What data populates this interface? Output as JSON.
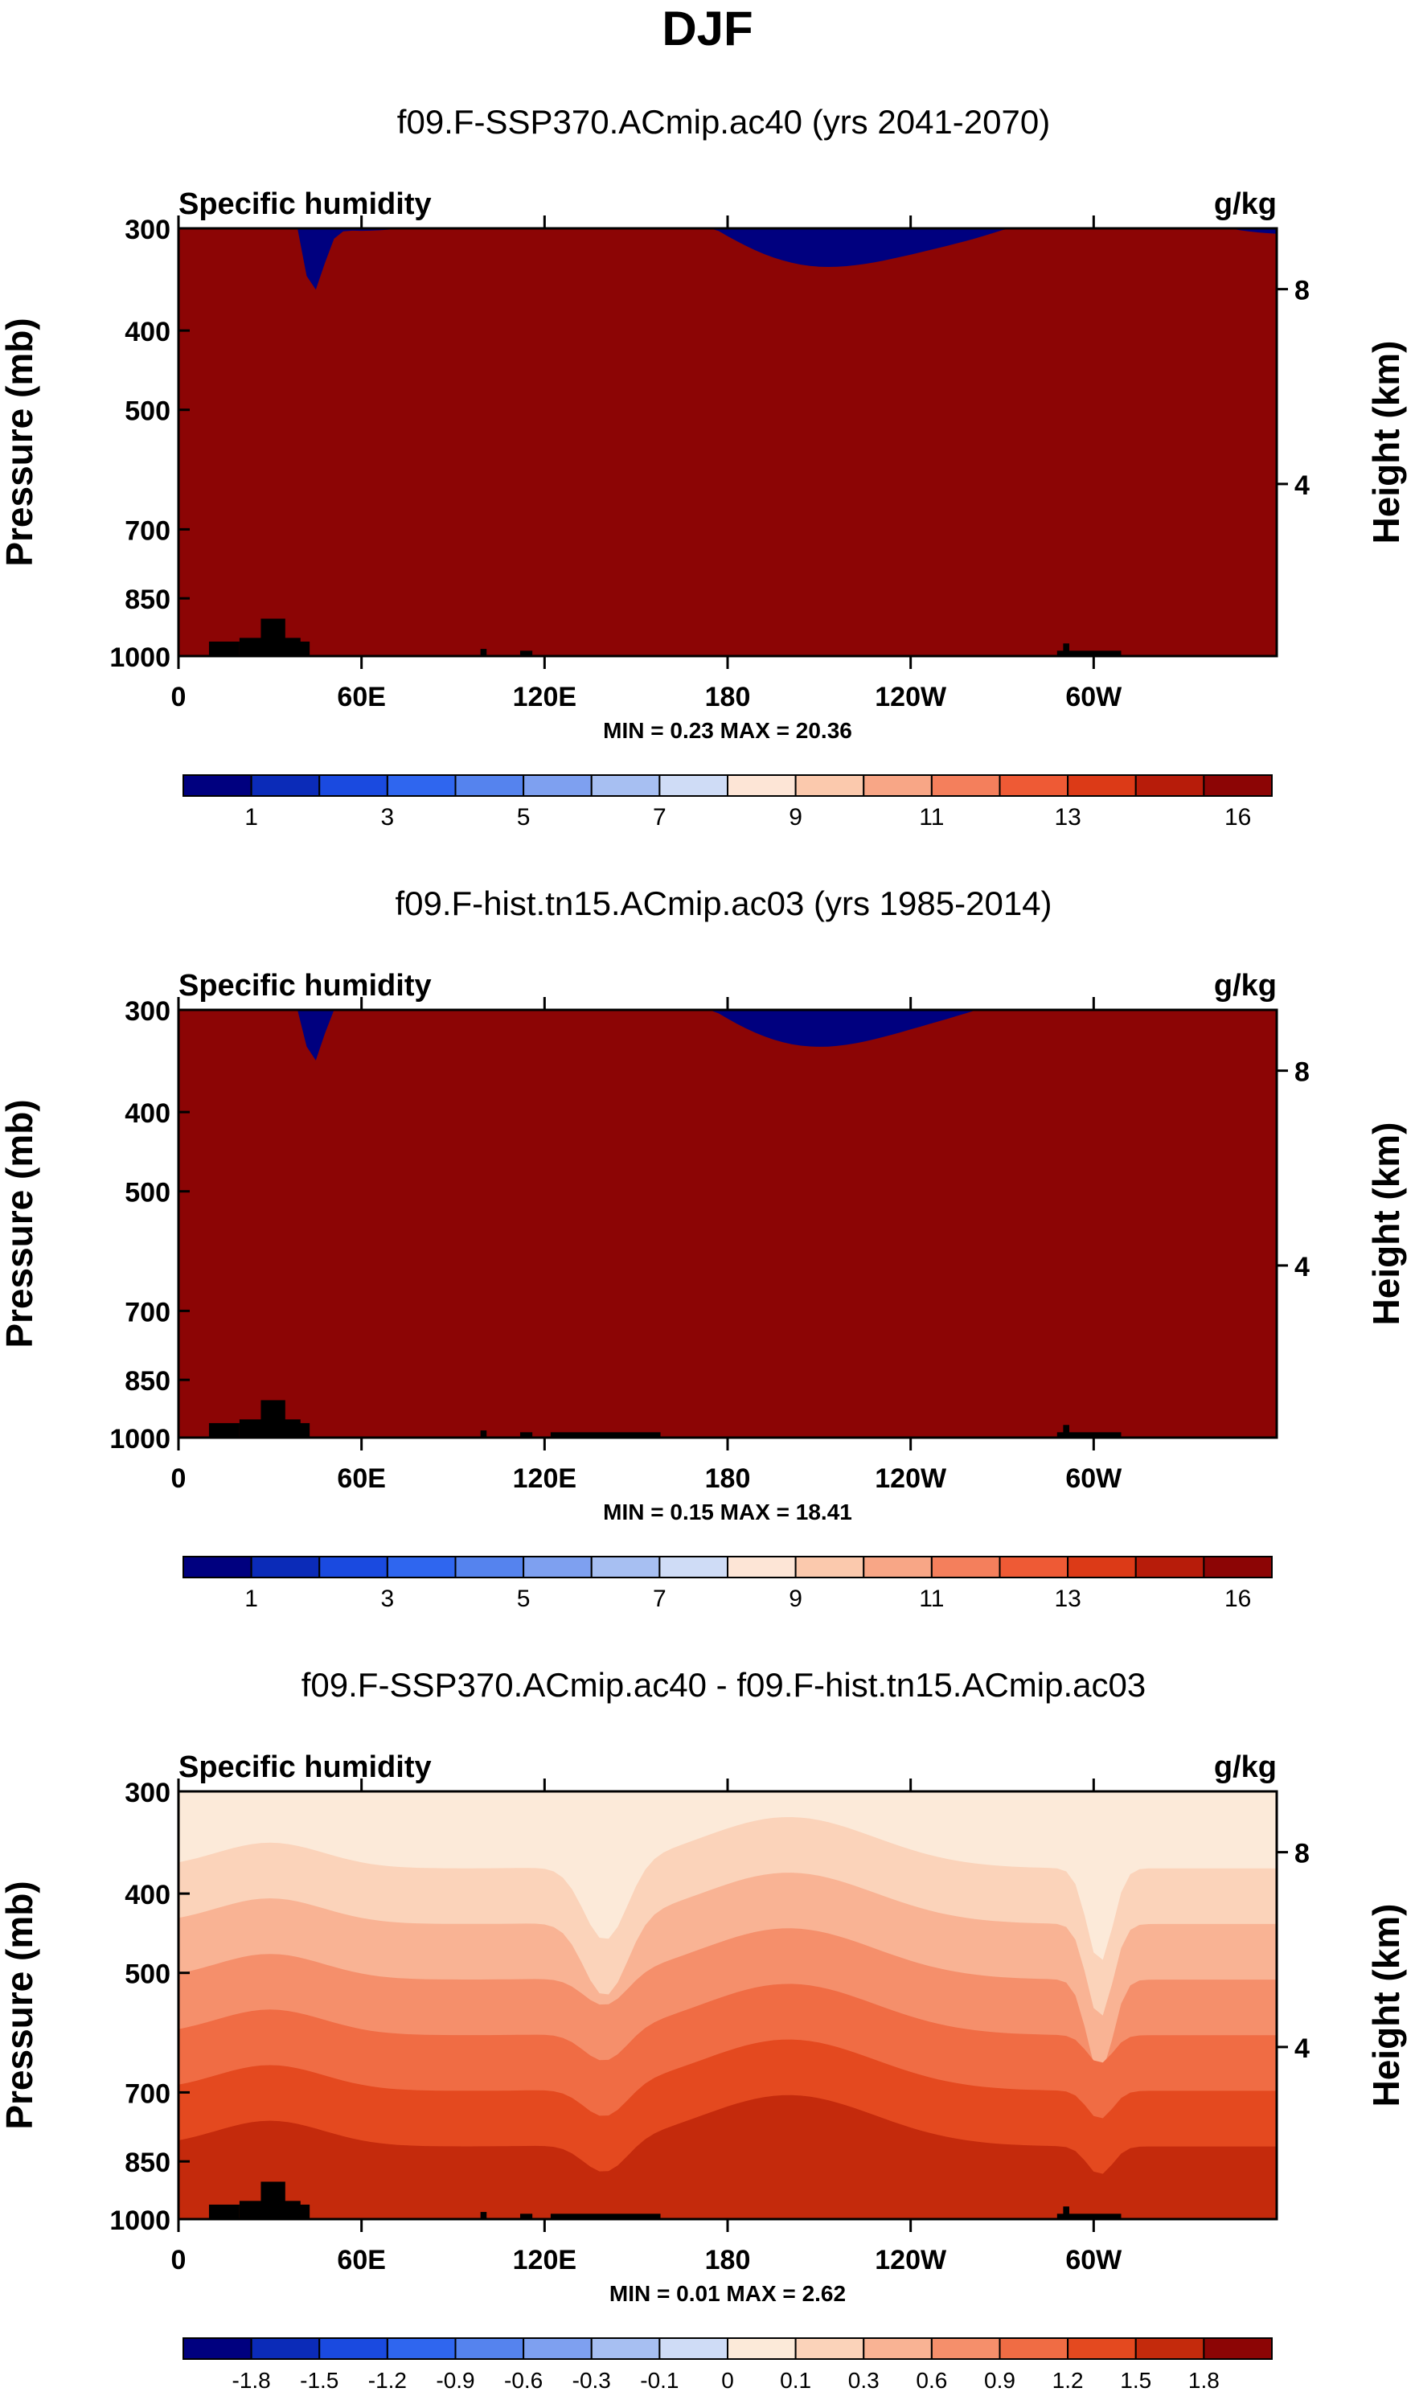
{
  "page": {
    "title": "DJF"
  },
  "colors": {
    "full_field": [
      "#00007f",
      "#0b2bb8",
      "#1a4ae0",
      "#2f66ef",
      "#5583ee",
      "#7ea0f0",
      "#a7bff2",
      "#cfdcf6",
      "#f1f4fb",
      "#fde5d6",
      "#fbc9ad",
      "#f8a686",
      "#f47f5c",
      "#ee5a35",
      "#dc3a17",
      "#b71c0a",
      "#8c0505"
    ],
    "anomaly": [
      "#00007f",
      "#0b2bb8",
      "#1a4ae0",
      "#2f66ef",
      "#5583ee",
      "#7ea0f0",
      "#a7bff2",
      "#cfdcf6",
      "#fcead9",
      "#fbd3ba",
      "#f9b394",
      "#f58f6b",
      "#f06c44",
      "#e4491f",
      "#c42a0c",
      "#8c0505"
    ],
    "land": "#000000"
  },
  "chart_data": [
    {
      "type": "heatmap",
      "title": "f09.F-SSP370.ACmip.ac40 (yrs 2041-2070)",
      "left_label": "Specific humidity",
      "units": "g/kg",
      "x_ticks": [
        "0",
        "60E",
        "120E",
        "180",
        "120W",
        "60W"
      ],
      "x_tick_lon": [
        0,
        60,
        120,
        180,
        240,
        300
      ],
      "x_range": [
        0,
        360
      ],
      "y_ticks": [
        "300",
        "400",
        "500",
        "700",
        "850",
        "1000"
      ],
      "y_tick_pressure": [
        300,
        400,
        500,
        700,
        850,
        1000
      ],
      "y_range_mb": [
        300,
        1000
      ],
      "ylabel": "Pressure (mb)",
      "y2_ticks": [
        "8",
        "4"
      ],
      "y2_tick_pressure": [
        356,
        616
      ],
      "ylabel2": "Height (km)",
      "stats": "MIN =   0.23   MAX =  20.36",
      "colorbar_labels": [
        "1",
        "3",
        "5",
        "7",
        "9",
        "11",
        "13",
        "16"
      ],
      "colorbar_n": 16,
      "palette": "full_field",
      "ramp": [
        0.15,
        0.35,
        0.55,
        0.72,
        0.86,
        1.0,
        1.12,
        1.22,
        1.3,
        1.38,
        1.45,
        1.52,
        1.58,
        1.64,
        1.7,
        1.76
      ]
    },
    {
      "type": "heatmap",
      "title": "f09.F-hist.tn15.ACmip.ac03 (yrs 1985-2014)",
      "left_label": "Specific humidity",
      "units": "g/kg",
      "x_ticks": [
        "0",
        "60E",
        "120E",
        "180",
        "120W",
        "60W"
      ],
      "x_tick_lon": [
        0,
        60,
        120,
        180,
        240,
        300
      ],
      "x_range": [
        0,
        360
      ],
      "y_ticks": [
        "300",
        "400",
        "500",
        "700",
        "850",
        "1000"
      ],
      "y_tick_pressure": [
        300,
        400,
        500,
        700,
        850,
        1000
      ],
      "y_range_mb": [
        300,
        1000
      ],
      "ylabel": "Pressure (mb)",
      "y2_ticks": [
        "8",
        "4"
      ],
      "y2_tick_pressure": [
        356,
        616
      ],
      "ylabel2": "Height (km)",
      "stats": "MIN =   0.15   MAX =  18.41",
      "colorbar_labels": [
        "1",
        "3",
        "5",
        "7",
        "9",
        "11",
        "13",
        "16"
      ],
      "colorbar_n": 16,
      "palette": "full_field",
      "ramp": [
        0.22,
        0.44,
        0.66,
        0.84,
        0.98,
        1.1,
        1.2,
        1.28,
        1.36,
        1.44,
        1.51,
        1.57,
        1.63,
        1.69,
        1.75,
        1.81
      ]
    },
    {
      "type": "heatmap",
      "title": "f09.F-SSP370.ACmip.ac40 - f09.F-hist.tn15.ACmip.ac03",
      "left_label": "Specific humidity",
      "units": "g/kg",
      "x_ticks": [
        "0",
        "60E",
        "120E",
        "180",
        "120W",
        "60W"
      ],
      "x_tick_lon": [
        0,
        60,
        120,
        180,
        240,
        300
      ],
      "x_range": [
        0,
        360
      ],
      "y_ticks": [
        "300",
        "400",
        "500",
        "700",
        "850",
        "1000"
      ],
      "y_tick_pressure": [
        300,
        400,
        500,
        700,
        850,
        1000
      ],
      "y_range_mb": [
        300,
        1000
      ],
      "ylabel": "Pressure (mb)",
      "y2_ticks": [
        "8",
        "4"
      ],
      "y2_tick_pressure": [
        356,
        616
      ],
      "ylabel2": "Height (km)",
      "stats": "MIN =   0.01   MAX =  2.62",
      "colorbar_labels": [
        "-1.8",
        "-1.5",
        "-1.2",
        "-0.9",
        "-0.6",
        "-0.3",
        "-0.1",
        "0",
        "0.1",
        "0.3",
        "0.6",
        "0.9",
        "1.2",
        "1.5",
        "1.8"
      ],
      "colorbar_n": 16,
      "palette": "anomaly",
      "anomaly_levels": [
        0.1,
        0.3,
        0.6,
        0.9,
        1.2,
        1.5,
        1.8
      ]
    }
  ]
}
